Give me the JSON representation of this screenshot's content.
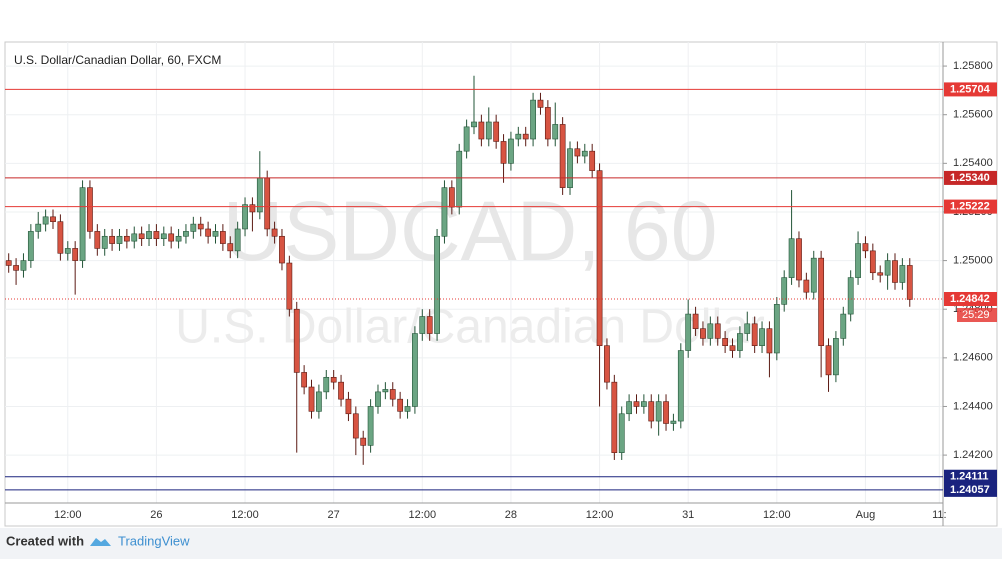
{
  "chart_data": {
    "type": "candlestick",
    "title": "U.S. Dollar/Canadian Dollar, 60, FXCM",
    "watermark": "USDCAD, 60",
    "watermark_sub": "U.S. Dollar/Canadian Dollar",
    "categories": [
      null,
      null,
      null,
      null,
      null,
      null,
      null,
      null,
      "12:00",
      null,
      null,
      null,
      null,
      null,
      null,
      null,
      null,
      null,
      null,
      null,
      "26",
      null,
      null,
      null,
      null,
      null,
      null,
      null,
      null,
      null,
      null,
      null,
      "12:00",
      null,
      null,
      null,
      null,
      null,
      null,
      null,
      null,
      null,
      null,
      null,
      "27",
      null,
      null,
      null,
      null,
      null,
      null,
      null,
      null,
      null,
      null,
      null,
      "12:00",
      null,
      null,
      null,
      null,
      null,
      null,
      null,
      null,
      null,
      null,
      null,
      "28",
      null,
      null,
      null,
      null,
      null,
      null,
      null,
      null,
      null,
      null,
      null,
      "12:00",
      null,
      null,
      null,
      null,
      null,
      null,
      null,
      null,
      null,
      null,
      null,
      "31",
      null,
      null,
      null,
      null,
      null,
      null,
      null,
      null,
      null,
      null,
      null,
      "12:00",
      null,
      null,
      null,
      null,
      null,
      null,
      null,
      null,
      null,
      null,
      null,
      "Aug",
      null,
      null,
      null,
      null,
      null,
      null,
      null,
      null,
      null,
      "11:"
    ],
    "open": [
      1.25,
      1.2498,
      1.2496,
      1.25,
      1.2512,
      1.2515,
      1.2518,
      1.2516,
      1.2503,
      1.2505,
      1.25,
      1.253,
      1.2512,
      1.2505,
      1.251,
      1.2507,
      1.251,
      1.2508,
      1.2511,
      1.2509,
      1.2512,
      1.2509,
      1.2511,
      1.2508,
      1.251,
      1.2512,
      1.2515,
      1.2513,
      1.251,
      1.2512,
      1.2507,
      1.2504,
      1.2513,
      1.2523,
      1.252,
      1.2534,
      1.2513,
      1.251,
      1.2499,
      1.248,
      1.2454,
      1.2448,
      1.2438,
      1.2446,
      1.2452,
      1.245,
      1.2443,
      1.2437,
      1.2427,
      1.2424,
      1.244,
      1.2446,
      1.2447,
      1.2443,
      1.2438,
      1.244,
      1.247,
      1.2477,
      1.247,
      1.251,
      1.253,
      1.2522,
      1.2545,
      1.2555,
      1.2557,
      1.255,
      1.2557,
      1.2549,
      1.254,
      1.255,
      1.2552,
      1.255,
      1.2566,
      1.2563,
      1.255,
      1.2556,
      1.253,
      1.2546,
      1.2543,
      1.2545,
      1.2537,
      1.2465,
      1.245,
      1.2421,
      1.2437,
      1.2442,
      1.244,
      1.2442,
      1.2434,
      1.2442,
      1.2433,
      1.2434,
      1.2463,
      1.2478,
      1.2472,
      1.2468,
      1.2474,
      1.2468,
      1.2465,
      1.2463,
      1.247,
      1.2474,
      1.2465,
      1.2472,
      1.2462,
      1.2482,
      1.2493,
      1.2509,
      1.2492,
      1.2487,
      1.2501,
      1.2465,
      1.2453,
      1.2468,
      1.2478,
      1.2493,
      1.2507,
      1.2504,
      1.2495,
      1.2494,
      1.25,
      1.2491,
      1.2498,
      null,
      null,
      null,
      null
    ],
    "high": [
      1.2503,
      1.2501,
      1.2503,
      1.2515,
      1.252,
      1.2521,
      1.2521,
      1.2519,
      1.2508,
      1.2508,
      1.2533,
      1.2533,
      1.2515,
      1.2513,
      1.2513,
      1.2513,
      1.2513,
      1.2514,
      1.2514,
      1.2515,
      1.2515,
      1.2514,
      1.2514,
      1.2513,
      1.2515,
      1.2518,
      1.2518,
      1.2516,
      1.2515,
      1.2515,
      1.251,
      1.2516,
      1.2526,
      1.2526,
      1.2545,
      1.2537,
      1.2516,
      1.2513,
      1.2502,
      1.2483,
      1.2457,
      1.2451,
      1.2449,
      1.2455,
      1.2455,
      1.2453,
      1.2446,
      1.244,
      1.243,
      1.2443,
      1.2449,
      1.245,
      1.245,
      1.2446,
      1.2443,
      1.2473,
      1.248,
      1.248,
      1.2513,
      1.2533,
      1.2533,
      1.2548,
      1.2558,
      1.2576,
      1.256,
      1.2563,
      1.256,
      1.2552,
      1.2553,
      1.2555,
      1.2555,
      1.2569,
      1.2569,
      1.2566,
      1.2565,
      1.2559,
      1.2549,
      1.2549,
      1.2548,
      1.2548,
      1.254,
      1.2468,
      1.2453,
      1.244,
      1.2445,
      1.2445,
      1.2445,
      1.2445,
      1.2445,
      1.2445,
      1.2437,
      1.2466,
      1.2484,
      1.2481,
      1.2475,
      1.2477,
      1.2477,
      1.2471,
      1.2468,
      1.2473,
      1.2479,
      1.2477,
      1.2475,
      1.2475,
      1.2485,
      1.2496,
      1.2529,
      1.2512,
      1.2495,
      1.2504,
      1.2504,
      1.2468,
      1.2471,
      1.2481,
      1.2496,
      1.2512,
      1.251,
      1.2507,
      1.2498,
      1.2503,
      1.2503,
      1.2501,
      1.2501,
      null,
      null,
      null,
      null
    ],
    "low": [
      1.2495,
      1.249,
      1.2493,
      1.2497,
      1.2509,
      1.2512,
      1.2513,
      1.25,
      1.25,
      1.2486,
      1.2497,
      1.2509,
      1.2502,
      1.2502,
      1.2504,
      1.2504,
      1.2505,
      1.2505,
      1.2506,
      1.2506,
      1.2506,
      1.2506,
      1.2505,
      1.2505,
      1.2507,
      1.2509,
      1.251,
      1.2507,
      1.2507,
      1.2504,
      1.2501,
      1.2501,
      1.251,
      1.2512,
      1.2517,
      1.251,
      1.2507,
      1.2496,
      1.2477,
      1.2421,
      1.2445,
      1.2435,
      1.2435,
      1.2443,
      1.2447,
      1.244,
      1.2434,
      1.242,
      1.2416,
      1.2421,
      1.2437,
      1.2443,
      1.244,
      1.2435,
      1.2435,
      1.2437,
      1.2467,
      1.2467,
      1.2467,
      1.2507,
      1.2519,
      1.2519,
      1.2542,
      1.2552,
      1.2547,
      1.2547,
      1.2546,
      1.2532,
      1.2537,
      1.2547,
      1.2547,
      1.2547,
      1.256,
      1.2547,
      1.2547,
      1.2527,
      1.2527,
      1.254,
      1.254,
      1.2534,
      1.244,
      1.2447,
      1.2418,
      1.2418,
      1.2434,
      1.2437,
      1.2437,
      1.2431,
      1.2428,
      1.243,
      1.243,
      1.2431,
      1.246,
      1.2469,
      1.2465,
      1.2465,
      1.2465,
      1.2462,
      1.246,
      1.246,
      1.2467,
      1.2462,
      1.2462,
      1.2452,
      1.2459,
      1.2479,
      1.249,
      1.2489,
      1.2484,
      1.2484,
      1.2452,
      1.2446,
      1.245,
      1.2465,
      1.2475,
      1.249,
      1.2501,
      1.2492,
      1.2491,
      1.2488,
      1.2488,
      1.2488,
      1.2481,
      null,
      null,
      null,
      null
    ],
    "close": [
      1.2498,
      1.2496,
      1.25,
      1.2512,
      1.2515,
      1.2518,
      1.2516,
      1.2503,
      1.2505,
      1.25,
      1.253,
      1.2512,
      1.2505,
      1.251,
      1.2507,
      1.251,
      1.2508,
      1.2511,
      1.2509,
      1.2512,
      1.2509,
      1.2511,
      1.2508,
      1.251,
      1.2512,
      1.2515,
      1.2513,
      1.251,
      1.2512,
      1.2507,
      1.2504,
      1.2513,
      1.2523,
      1.252,
      1.2534,
      1.2513,
      1.251,
      1.2499,
      1.248,
      1.2454,
      1.2448,
      1.2438,
      1.2446,
      1.2452,
      1.245,
      1.2443,
      1.2437,
      1.2427,
      1.2424,
      1.244,
      1.2446,
      1.2447,
      1.2443,
      1.2438,
      1.244,
      1.247,
      1.2477,
      1.247,
      1.251,
      1.253,
      1.2522,
      1.2545,
      1.2555,
      1.2557,
      1.255,
      1.2557,
      1.2549,
      1.254,
      1.255,
      1.2552,
      1.255,
      1.2566,
      1.2563,
      1.255,
      1.2556,
      1.253,
      1.2546,
      1.2543,
      1.2545,
      1.2537,
      1.2465,
      1.245,
      1.2421,
      1.2437,
      1.2442,
      1.244,
      1.2442,
      1.2434,
      1.2442,
      1.2433,
      1.2434,
      1.2463,
      1.2478,
      1.2472,
      1.2468,
      1.2474,
      1.2468,
      1.2465,
      1.2463,
      1.247,
      1.2474,
      1.2465,
      1.2472,
      1.2462,
      1.2482,
      1.2493,
      1.2509,
      1.2492,
      1.2487,
      1.2501,
      1.2465,
      1.2453,
      1.2468,
      1.2478,
      1.2493,
      1.2507,
      1.2504,
      1.2495,
      1.2494,
      1.25,
      1.2491,
      1.2498,
      1.2484,
      null,
      null,
      null,
      null
    ],
    "up_color": "#6ba583",
    "down_color": "#d75442",
    "ylim": [
      1.24003,
      1.25899
    ],
    "yticks": [
      {
        "value": 1.242,
        "label": "1.24200"
      },
      {
        "value": 1.244,
        "label": "1.24400"
      },
      {
        "value": 1.246,
        "label": "1.24600"
      },
      {
        "value": 1.248,
        "label": "1.24800"
      },
      {
        "value": 1.25,
        "label": "1.25000"
      },
      {
        "value": 1.252,
        "label": "1.25200"
      },
      {
        "value": 1.254,
        "label": "1.25400"
      },
      {
        "value": 1.256,
        "label": "1.25600"
      },
      {
        "value": 1.258,
        "label": "1.25800"
      }
    ],
    "grid": true,
    "levels": [
      {
        "value": 1.25704,
        "color": "#e53935"
      },
      {
        "value": 1.2534,
        "label": "1.25340",
        "color": "#c62828"
      },
      {
        "value": 1.25222,
        "color": "#e53935"
      },
      {
        "value": 1.24842,
        "color": "#e53935",
        "dotted": true
      },
      {
        "value": 1.24111,
        "color": "#1a237e"
      },
      {
        "value": 1.24057,
        "color": "#1a237e"
      }
    ],
    "countdown": "25:29"
  },
  "footer": {
    "created": "Created with",
    "brand": "TradingView"
  }
}
